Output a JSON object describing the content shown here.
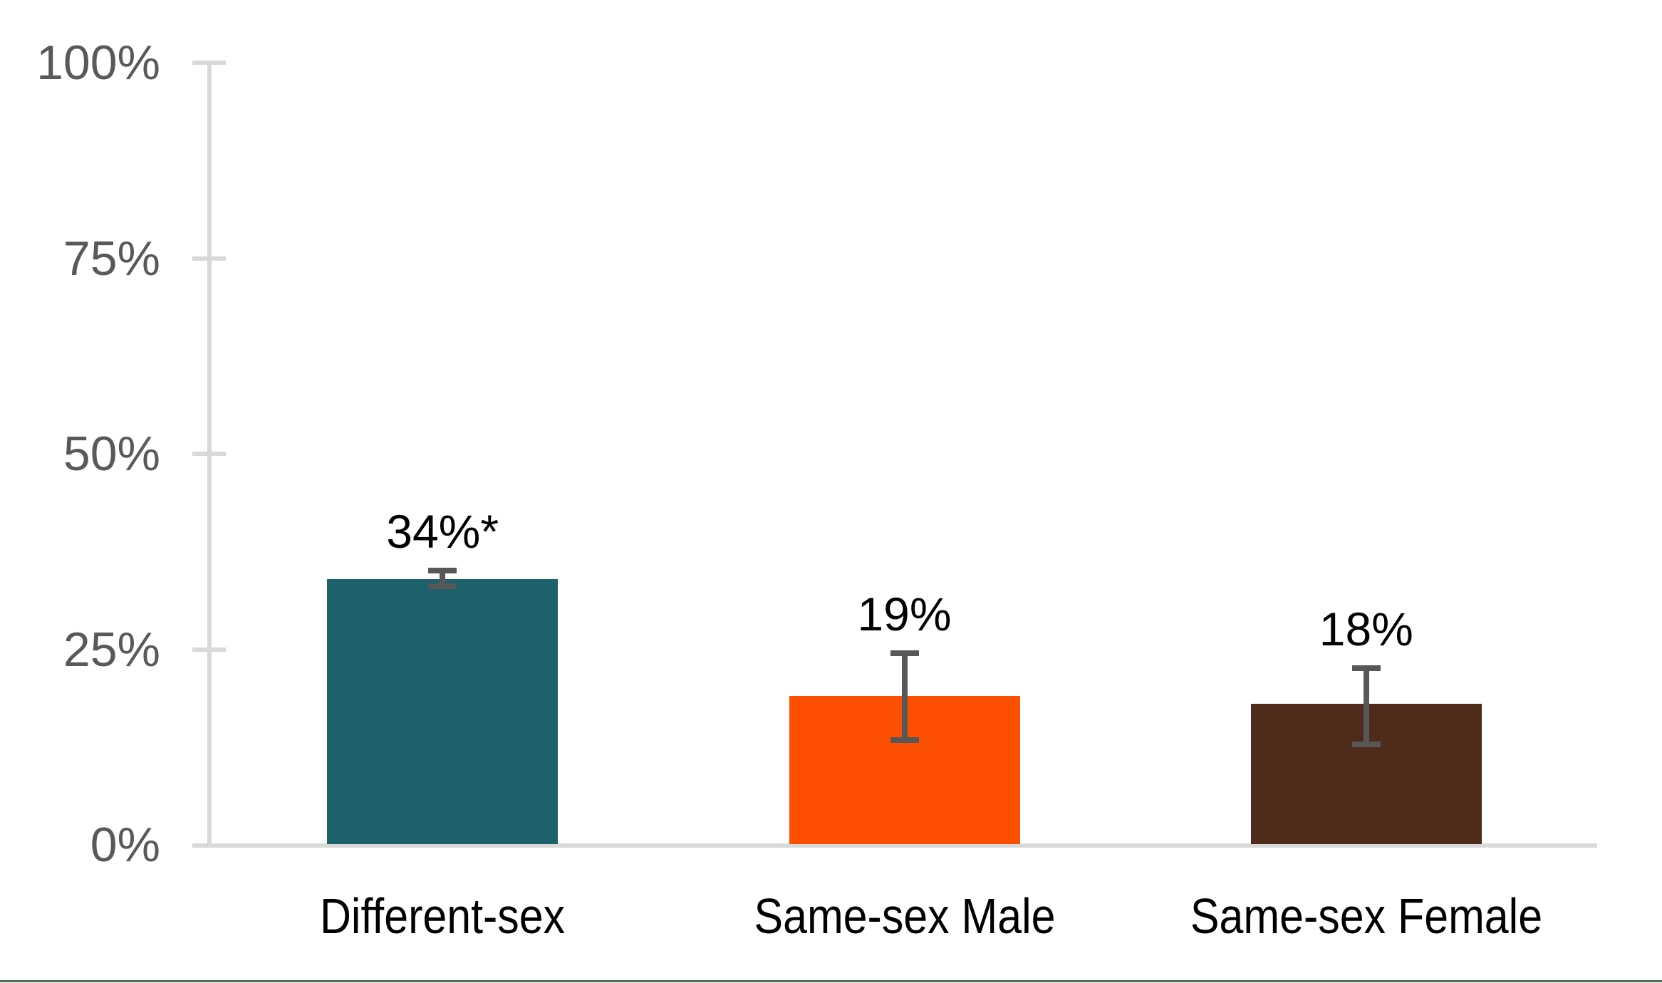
{
  "chart_data": {
    "type": "bar",
    "categories": [
      "Different-sex",
      "Same-sex Male",
      "Same-sex Female"
    ],
    "values": [
      34,
      19,
      18
    ],
    "value_labels": [
      "34%*",
      "19%",
      "18%"
    ],
    "error_bars": [
      {
        "upper": 35.1,
        "lower": 33.1
      },
      {
        "upper": 24.5,
        "lower": 13.4
      },
      {
        "upper": 22.6,
        "lower": 12.8
      }
    ],
    "bar_colors": [
      "#1C616C",
      "#FC4F02",
      "#4F2B1C"
    ],
    "ylim": [
      0,
      100
    ],
    "y_ticks": [
      0,
      25,
      50,
      75,
      100
    ],
    "y_tick_labels": [
      "0%",
      "25%",
      "50%",
      "75%",
      "100%"
    ],
    "grid": false,
    "legend": false
  },
  "colors": {
    "background": "#FFFFFF",
    "axis_line": "#D9D9D9",
    "tick_label": "#595959",
    "error_bar": "#575757",
    "value_label": "#000000",
    "category_label": "#000000",
    "page_bottom_border": "#4F7055"
  }
}
